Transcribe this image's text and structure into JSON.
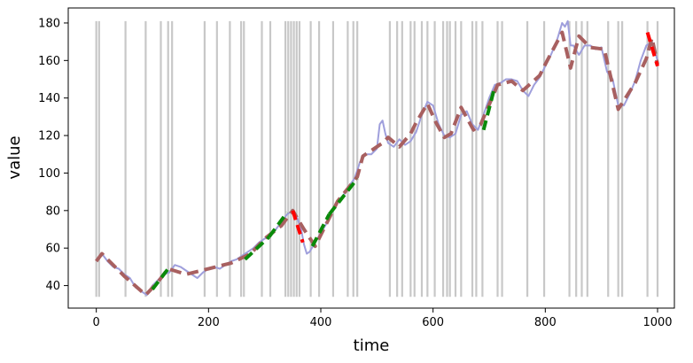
{
  "chart_data": {
    "type": "line",
    "title": "",
    "xlabel": "time",
    "ylabel": "value",
    "xlim": [
      -50,
      1030
    ],
    "ylim": [
      28,
      188
    ],
    "x_ticks": [
      0,
      200,
      400,
      600,
      800,
      1000
    ],
    "y_ticks": [
      40,
      60,
      80,
      100,
      120,
      140,
      160,
      180
    ],
    "x_tick_labels": [
      "0",
      "200",
      "400",
      "600",
      "800",
      "1000"
    ],
    "y_tick_labels": [
      "40",
      "60",
      "80",
      "100",
      "120",
      "140",
      "160",
      "180"
    ],
    "grid": false,
    "legend": "none",
    "colors": {
      "raw": "#9f9fdc",
      "trend": "#a86060",
      "up": "#0a8a0a",
      "down": "#ff0000",
      "markers": "#c8c8c8"
    },
    "vertical_markers": {
      "ymin": 34,
      "ymax": 181,
      "x": [
        0,
        5,
        52,
        88,
        115,
        128,
        135,
        193,
        215,
        238,
        258,
        263,
        295,
        310,
        337,
        342,
        347,
        352,
        357,
        362,
        382,
        397,
        422,
        448,
        458,
        465,
        523,
        536,
        545,
        560,
        567,
        580,
        590,
        603,
        618,
        625,
        630,
        640,
        650,
        670,
        677,
        688,
        715,
        723,
        768,
        798,
        843,
        855,
        865,
        875,
        912,
        930,
        937,
        982,
        1000
      ]
    },
    "raw_series": {
      "name": "",
      "x": [
        0,
        10,
        20,
        30,
        40,
        50,
        60,
        70,
        80,
        90,
        100,
        110,
        120,
        130,
        140,
        150,
        160,
        170,
        180,
        190,
        200,
        210,
        220,
        230,
        240,
        250,
        260,
        270,
        280,
        290,
        300,
        310,
        320,
        330,
        340,
        350,
        358,
        365,
        370,
        375,
        380,
        390,
        400,
        410,
        420,
        430,
        440,
        450,
        460,
        470,
        480,
        490,
        500,
        505,
        510,
        515,
        520,
        530,
        540,
        550,
        560,
        570,
        580,
        590,
        600,
        610,
        620,
        630,
        640,
        650,
        660,
        670,
        680,
        690,
        700,
        710,
        720,
        730,
        740,
        750,
        760,
        770,
        780,
        790,
        800,
        810,
        820,
        830,
        835,
        840,
        845,
        850,
        860,
        870,
        880,
        890,
        900,
        910,
        920,
        930,
        940,
        950,
        960,
        970,
        980,
        990,
        1000
      ],
      "y": [
        53,
        57,
        53,
        50,
        49,
        46,
        44,
        39,
        37,
        35,
        40,
        43,
        46,
        47,
        51,
        50,
        48,
        46,
        44,
        47,
        49,
        50,
        49,
        51,
        53,
        54,
        56,
        58,
        60,
        63,
        65,
        67,
        70,
        74,
        78,
        80,
        76,
        70,
        62,
        57,
        58,
        63,
        68,
        73,
        80,
        85,
        88,
        93,
        97,
        106,
        110,
        110,
        113,
        126,
        128,
        121,
        116,
        114,
        118,
        115,
        117,
        122,
        131,
        138,
        136,
        126,
        120,
        119,
        121,
        131,
        133,
        126,
        123,
        131,
        140,
        147,
        148,
        150,
        150,
        149,
        144,
        141,
        147,
        151,
        157,
        163,
        170,
        180,
        178,
        181,
        168,
        168,
        163,
        168,
        168,
        166,
        167,
        154,
        150,
        136,
        136,
        142,
        149,
        160,
        168,
        170,
        160
      ]
    },
    "trend_series": {
      "name": "",
      "x": [
        0,
        10,
        50,
        88,
        110,
        128,
        160,
        200,
        240,
        275,
        300,
        330,
        350,
        370,
        390,
        430,
        465,
        475,
        510,
        520,
        540,
        560,
        570,
        590,
        605,
        620,
        632,
        650,
        672,
        685,
        715,
        740,
        760,
        790,
        800,
        830,
        845,
        860,
        880,
        905,
        930,
        960,
        980,
        990,
        1000
      ],
      "y": [
        53,
        57,
        45,
        35,
        42,
        49,
        46,
        49,
        52,
        57,
        65,
        72,
        80,
        70,
        61,
        85,
        98,
        109,
        116,
        119,
        114,
        121,
        127,
        137,
        127,
        119,
        121,
        135,
        123,
        126,
        147,
        149,
        144,
        152,
        158,
        175,
        156,
        173,
        167,
        166,
        134,
        148,
        161,
        172,
        158
      ]
    },
    "up_segments": [
      [
        [
          100,
          38
        ],
        [
          128,
          49
        ]
      ],
      [
        [
          265,
          54
        ],
        [
          308,
          66
        ]
      ],
      [
        [
          308,
          66
        ],
        [
          340,
          79
        ]
      ],
      [
        [
          385,
          61
        ],
        [
          415,
          78
        ]
      ],
      [
        [
          415,
          78
        ],
        [
          465,
          97
        ]
      ],
      [
        [
          690,
          123
        ],
        [
          710,
          146
        ]
      ]
    ],
    "down_segments": [
      [
        [
          350,
          80
        ],
        [
          368,
          63
        ]
      ],
      [
        [
          982,
          175
        ],
        [
          1000,
          157
        ]
      ]
    ]
  }
}
